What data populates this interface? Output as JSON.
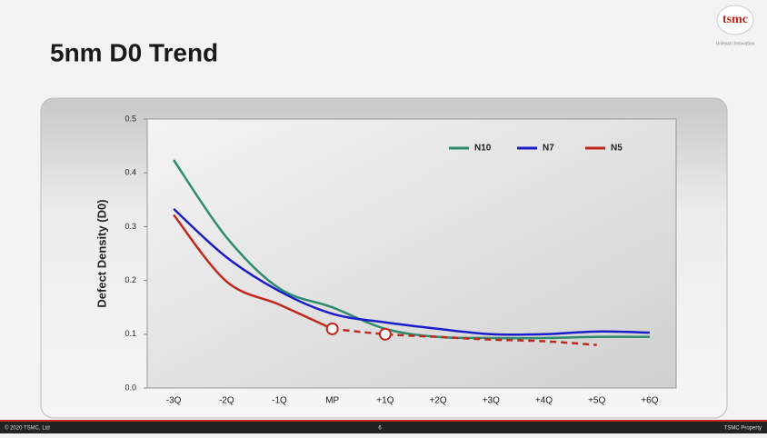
{
  "header": {
    "title": "5nm D0 Trend",
    "logo": "tsmc",
    "tagline": "Unleash Innovation"
  },
  "footer": {
    "left": "© 2020 TSMC, Ltd",
    "page": "6",
    "right": "TSMC Property"
  },
  "chart_data": {
    "type": "line",
    "y_label": "Defect Density (D0)",
    "categories": [
      "-3Q",
      "-2Q",
      "-1Q",
      "MP",
      "+1Q",
      "+2Q",
      "+3Q",
      "+4Q",
      "+5Q",
      "+6Q"
    ],
    "ylim": [
      0,
      0.5
    ],
    "yticks": [
      {
        "value": 0,
        "label": "0.0"
      },
      0.1,
      0.2,
      0.3,
      0.4,
      0.5
    ],
    "grid": false,
    "legend": "upper-right",
    "series": [
      {
        "name": "N10",
        "color": "#2e8b6e",
        "values": [
          0.424,
          0.28,
          0.185,
          0.15,
          0.11,
          0.095,
          0.093,
          0.093,
          0.095,
          0.095
        ]
      },
      {
        "name": "N7",
        "color": "#1c1cc8",
        "values": [
          0.333,
          0.243,
          0.18,
          0.138,
          0.122,
          0.11,
          0.1,
          0.1,
          0.105,
          0.103
        ]
      },
      {
        "name": "N5",
        "color": "#c0281e",
        "values": [
          0.322,
          0.198,
          0.155,
          0.11,
          0.1,
          0.095,
          0.09,
          0.087,
          0.08,
          null
        ],
        "dashed_from": 3,
        "markers_at": [
          3,
          4
        ]
      }
    ]
  }
}
